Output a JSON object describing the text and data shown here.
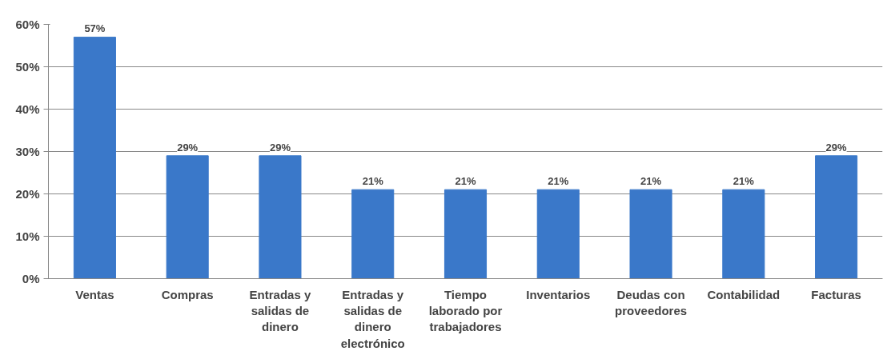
{
  "chart_data": {
    "type": "bar",
    "categories": [
      "Ventas",
      "Compras",
      "Entradas y salidas de dinero",
      "Entradas y salidas de dinero electrónico",
      "Tiempo laborado por trabajadores",
      "Inventarios",
      "Deudas con proveedores",
      "Contabilidad",
      "Facturas"
    ],
    "values": [
      57,
      29,
      29,
      21,
      21,
      21,
      21,
      21,
      29
    ],
    "value_labels": [
      "57%",
      "29%",
      "29%",
      "21%",
      "21%",
      "21%",
      "21%",
      "21%",
      "29%"
    ],
    "color": "#3a78c9",
    "ylim": [
      0,
      60
    ],
    "yticks": [
      {
        "value": 0,
        "label": "0%"
      },
      {
        "value": 10,
        "label": "10%"
      },
      {
        "value": 20,
        "label": "20%"
      },
      {
        "value": 30,
        "label": "30%"
      },
      {
        "value": 40,
        "label": "40%"
      },
      {
        "value": 50,
        "label": "50%"
      },
      {
        "value": 60,
        "label": "60%"
      }
    ],
    "grid": "y"
  }
}
